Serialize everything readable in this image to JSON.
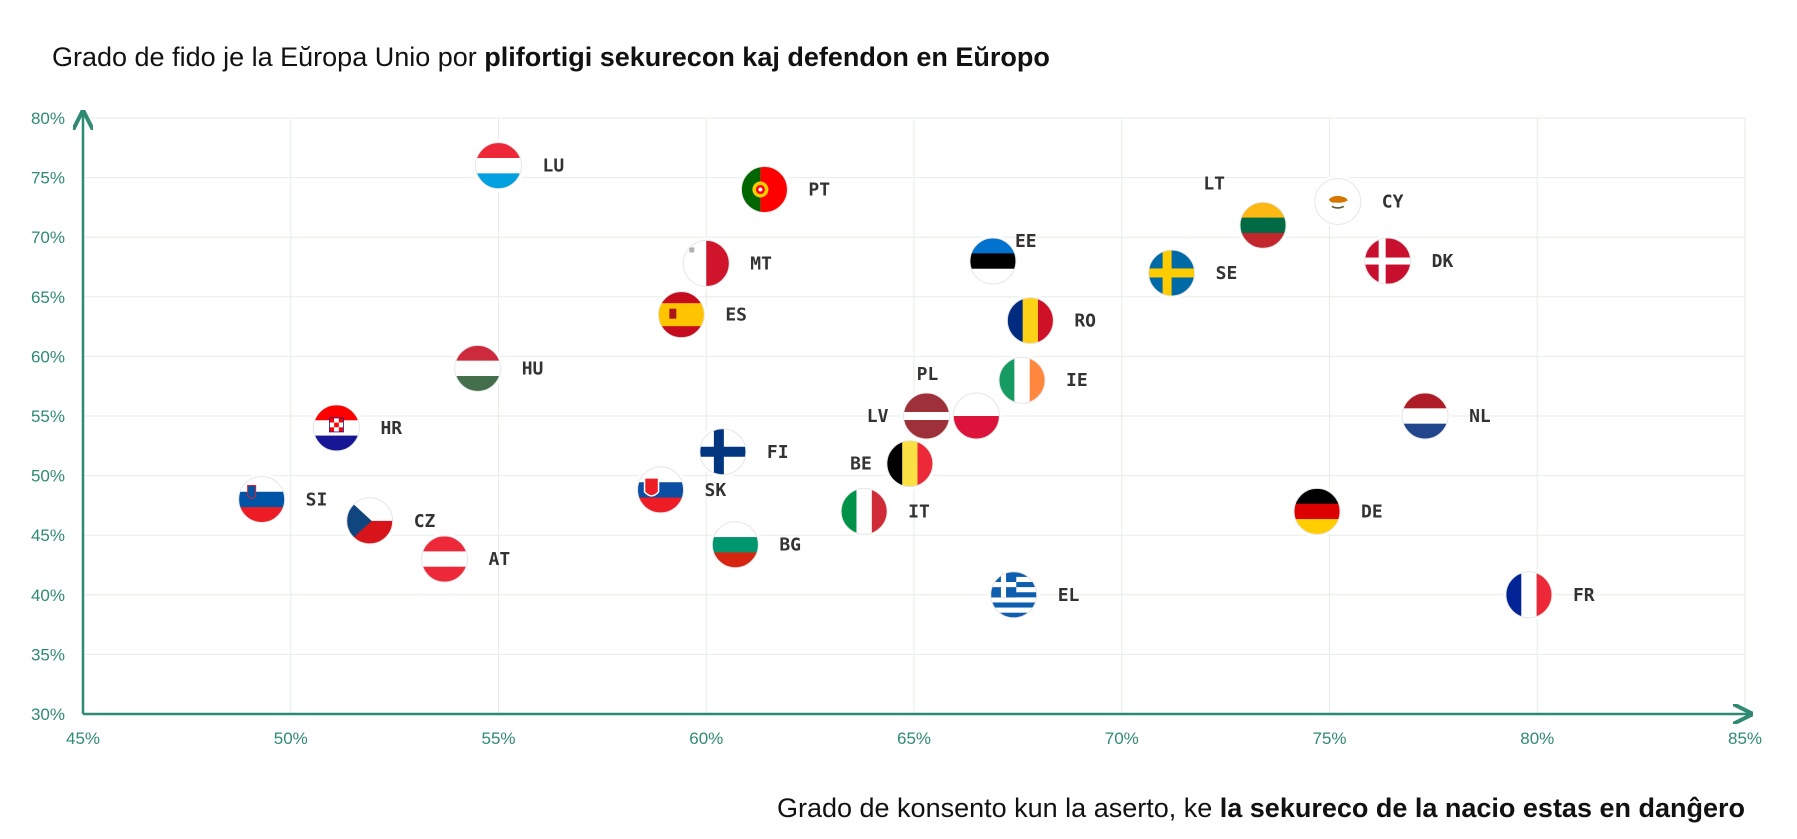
{
  "title": {
    "prefix": "Grado de fido je la Eŭropa Unio por ",
    "emphasis": "plifortigi sekurecon kaj defendon en Eŭropo"
  },
  "x_title": {
    "prefix": "Grado de konsento kun la aserto, ke ",
    "emphasis": "la sekureco de la nacio estas en danĝero"
  },
  "chart_data": {
    "type": "scatter",
    "xlim": [
      45,
      85
    ],
    "ylim": [
      30,
      80
    ],
    "x_ticks": [
      "45%",
      "50%",
      "55%",
      "60%",
      "65%",
      "70%",
      "75%",
      "80%",
      "85%"
    ],
    "y_ticks": [
      "30%",
      "35%",
      "40%",
      "45%",
      "50%",
      "55%",
      "60%",
      "65%",
      "70%",
      "75%",
      "80%"
    ],
    "grid": true,
    "colors": {
      "axis": "#2f8a73",
      "grid": "#e6eee6",
      "tick": "#2f8a73"
    },
    "points": [
      {
        "label": "LU",
        "x": 55.0,
        "y": 76.0,
        "flag": "luxembourg",
        "label_pos": "right"
      },
      {
        "label": "PT",
        "x": 61.4,
        "y": 74.0,
        "flag": "portugal",
        "label_pos": "right"
      },
      {
        "label": "MT",
        "x": 60.0,
        "y": 67.8,
        "flag": "malta",
        "label_pos": "right"
      },
      {
        "label": "ES",
        "x": 59.4,
        "y": 63.5,
        "flag": "spain",
        "label_pos": "right"
      },
      {
        "label": "HU",
        "x": 54.5,
        "y": 59.0,
        "flag": "hungary",
        "label_pos": "right"
      },
      {
        "label": "HR",
        "x": 51.1,
        "y": 54.0,
        "flag": "croatia",
        "label_pos": "right"
      },
      {
        "label": "SI",
        "x": 49.3,
        "y": 48.0,
        "flag": "slovenia",
        "label_pos": "right"
      },
      {
        "label": "CZ",
        "x": 51.9,
        "y": 46.2,
        "flag": "czechia",
        "label_pos": "right"
      },
      {
        "label": "AT",
        "x": 53.7,
        "y": 43.0,
        "flag": "austria",
        "label_pos": "right"
      },
      {
        "label": "SK",
        "x": 58.9,
        "y": 48.8,
        "flag": "slovakia",
        "label_pos": "right"
      },
      {
        "label": "FI",
        "x": 60.4,
        "y": 52.0,
        "flag": "finland",
        "label_pos": "right"
      },
      {
        "label": "BG",
        "x": 60.7,
        "y": 44.2,
        "flag": "bulgaria",
        "label_pos": "right"
      },
      {
        "label": "IT",
        "x": 63.8,
        "y": 47.0,
        "flag": "italy",
        "label_pos": "right"
      },
      {
        "label": "BE",
        "x": 64.9,
        "y": 51.0,
        "flag": "belgium",
        "label_pos": "left"
      },
      {
        "label": "LV",
        "x": 65.3,
        "y": 55.0,
        "flag": "latvia",
        "label_pos": "left"
      },
      {
        "label": "PL",
        "x": 66.5,
        "y": 55.0,
        "flag": "poland",
        "label_pos": "upper-left"
      },
      {
        "label": "IE",
        "x": 67.6,
        "y": 58.0,
        "flag": "ireland",
        "label_pos": "right"
      },
      {
        "label": "EE",
        "x": 66.9,
        "y": 68.0,
        "flag": "estonia",
        "label_pos": "upper-right"
      },
      {
        "label": "RO",
        "x": 67.8,
        "y": 63.0,
        "flag": "romania",
        "label_pos": "right"
      },
      {
        "label": "EL",
        "x": 67.4,
        "y": 40.0,
        "flag": "greece",
        "label_pos": "right"
      },
      {
        "label": "SE",
        "x": 71.2,
        "y": 67.0,
        "flag": "sweden",
        "label_pos": "right"
      },
      {
        "label": "LT",
        "x": 73.4,
        "y": 71.0,
        "flag": "lithuania",
        "label_pos": "upper-left"
      },
      {
        "label": "CY",
        "x": 75.2,
        "y": 73.0,
        "flag": "cyprus",
        "label_pos": "right"
      },
      {
        "label": "DK",
        "x": 76.4,
        "y": 68.0,
        "flag": "denmark",
        "label_pos": "right"
      },
      {
        "label": "NL",
        "x": 77.3,
        "y": 55.0,
        "flag": "netherlands",
        "label_pos": "right"
      },
      {
        "label": "DE",
        "x": 74.7,
        "y": 47.0,
        "flag": "germany",
        "label_pos": "right"
      },
      {
        "label": "FR",
        "x": 79.8,
        "y": 40.0,
        "flag": "france",
        "label_pos": "right"
      }
    ]
  }
}
